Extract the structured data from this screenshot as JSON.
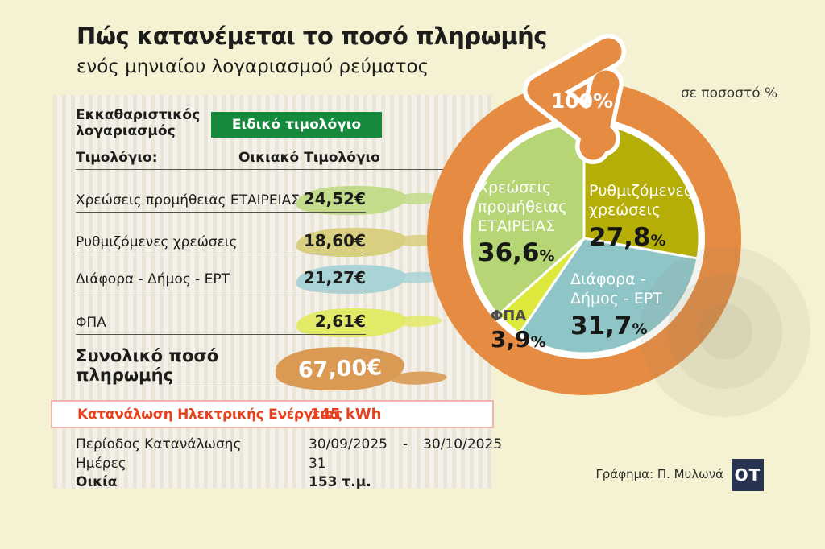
{
  "header": {
    "title": "Πώς κατανέμεται το ποσό πληρωμής",
    "subtitle": "ενός μηνιαίου λογαριασμού ρεύματος"
  },
  "bill": {
    "doc_type": "Εκκαθαριστικός λογαριασμός",
    "badge": "Ειδικό τιμολόγιο",
    "tariff_label": "Τιμολόγιο:",
    "tariff_value": "Οικιακό Τιμολόγιο",
    "rows": [
      {
        "label": "Χρεώσεις προμήθειας ΕΤΑΙΡΕΙΑΣ",
        "value": "24,52€",
        "highlight_color": "#c2dc8b"
      },
      {
        "label": "Ρυθμιζόμενες χρεώσεις",
        "value": "18,60€",
        "highlight_color": "#d9cf80"
      },
      {
        "label": "Διάφορα - Δήμος - ΕΡΤ",
        "value": "21,27€",
        "highlight_color": "#a9d4d6"
      },
      {
        "label": "ΦΠΑ",
        "value": "2,61€",
        "highlight_color": "#e3ea68"
      }
    ],
    "total_label": "Συνολικό ποσό πληρωμής",
    "total_value": "67,00€",
    "total_highlight_color": "#da9a54",
    "consumption": {
      "label": "Κατανάλωση Ηλεκτρικής Ενέργειας",
      "value": "145 kWh",
      "accent_color": "#e8401c"
    },
    "details": [
      {
        "label": "Περίοδος Κατανάλωσης",
        "from": "30/09/2025",
        "sep": "-",
        "to": "30/10/2025"
      },
      {
        "label": "Ημέρες",
        "value": "31"
      },
      {
        "label": "Οικία",
        "value": "153 τ.μ."
      }
    ]
  },
  "chart_data": {
    "type": "pie",
    "start_angle": 0,
    "direction": "clockwise",
    "unit_note": "σε ποσοστό %",
    "total_label": "100%",
    "pct_suffix": "%",
    "ring_color": "#e68b42",
    "slices": [
      {
        "label": "Ρυθμιζόμενες χρεώσεις",
        "value": 27.8,
        "display": "27,8",
        "color": "#b5ae07"
      },
      {
        "label": "Διάφορα - Δήμος - ΕΡΤ",
        "value": 31.7,
        "display": "31,7",
        "color": "#8fc5c7"
      },
      {
        "label": "ΦΠΑ",
        "value": 3.9,
        "display": "3,9",
        "color": "#dde93d"
      },
      {
        "label": "Χρεώσεις προμήθειας ΕΤΑΙΡΕΙΑΣ",
        "value": 36.6,
        "display": "36,6",
        "color": "#b6d676"
      }
    ]
  },
  "credits": {
    "text": "Γράφημα: Π. Μυλωνά",
    "logo": "ΟΤ"
  }
}
